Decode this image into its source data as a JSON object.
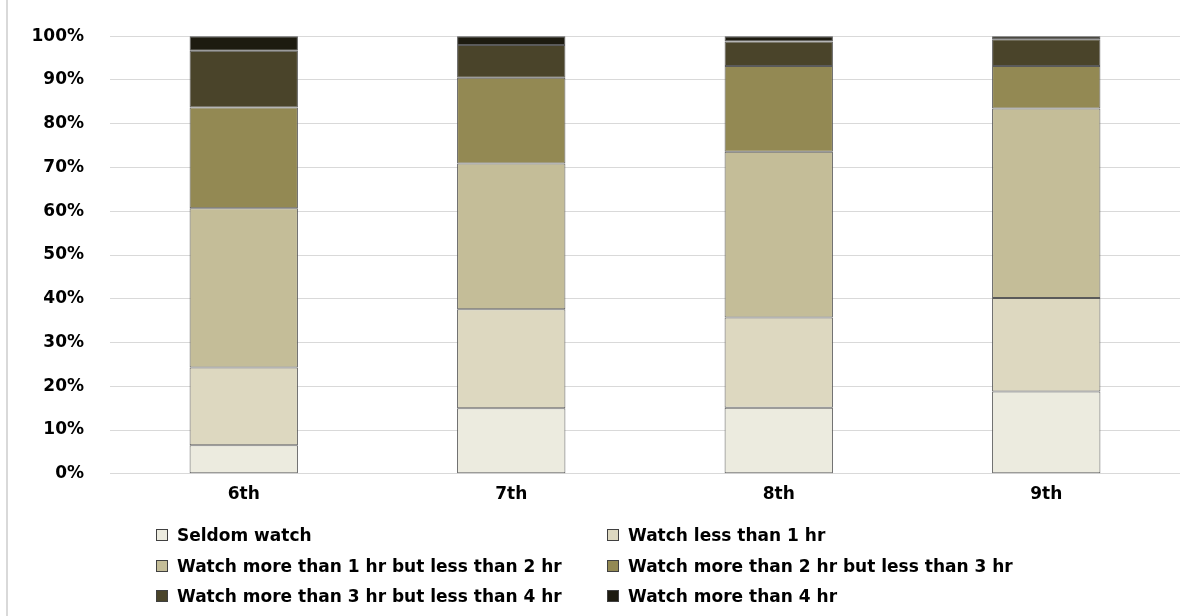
{
  "chart_data": {
    "type": "bar",
    "stacked": true,
    "categories": [
      "6th",
      "7th",
      "8th",
      "9th"
    ],
    "series": [
      {
        "name": "Seldom watch",
        "color": "#ecebdf",
        "values": [
          6.5,
          15.0,
          15.1,
          18.8
        ]
      },
      {
        "name": "Watch less than 1 hr",
        "color": "#ddd8c0",
        "values": [
          17.8,
          22.6,
          20.6,
          21.4
        ]
      },
      {
        "name": "Watch more than 1 hr but less than 2 hr",
        "color": "#c4bd98",
        "values": [
          36.4,
          33.3,
          37.9,
          43.3
        ]
      },
      {
        "name": "Watch more than 2 hr but less than 3 hr",
        "color": "#938953",
        "values": [
          23.0,
          19.6,
          19.6,
          9.7
        ]
      },
      {
        "name": "Watch more than 3 hr but less than 4 hr",
        "color": "#4a442a",
        "values": [
          13.0,
          7.5,
          5.6,
          6.1
        ]
      },
      {
        "name": "Watch more than 4 hr",
        "color": "#1d1b10",
        "values": [
          3.3,
          2.0,
          1.2,
          0.7
        ]
      }
    ],
    "ylim": [
      0,
      100
    ],
    "yticks": [
      {
        "value": 0,
        "label": "0%"
      },
      {
        "value": 10,
        "label": "10%"
      },
      {
        "value": 20,
        "label": "20%"
      },
      {
        "value": 30,
        "label": "30%"
      },
      {
        "value": 40,
        "label": "40%"
      },
      {
        "value": 50,
        "label": "50%"
      },
      {
        "value": 60,
        "label": "60%"
      },
      {
        "value": 70,
        "label": "70%"
      },
      {
        "value": 80,
        "label": "80%"
      },
      {
        "value": 90,
        "label": "90%"
      },
      {
        "value": 100,
        "label": "100%"
      }
    ],
    "grid": "y",
    "legend": "bottom"
  }
}
